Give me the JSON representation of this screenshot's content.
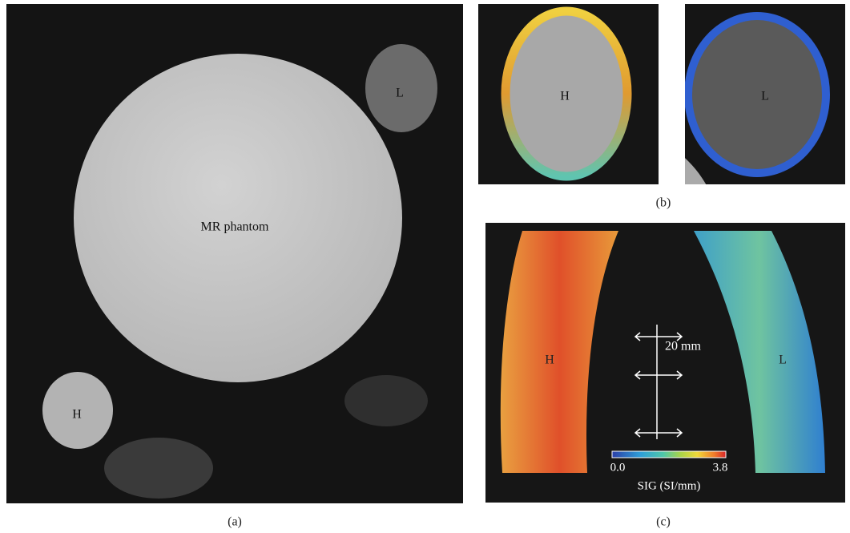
{
  "panel_a": {
    "label": "(a)",
    "phantom_label": "MR phantom",
    "low_label": "L",
    "high_label": "H"
  },
  "panel_b": {
    "label": "(b)",
    "high_label": "H",
    "low_label": "L"
  },
  "panel_c": {
    "label": "(c)",
    "high_label": "H",
    "low_label": "L",
    "scale_label": "20 mm",
    "colorbar_min": "0.0",
    "colorbar_max": "3.8",
    "colorbar_title": "SIG (SI/mm)"
  }
}
